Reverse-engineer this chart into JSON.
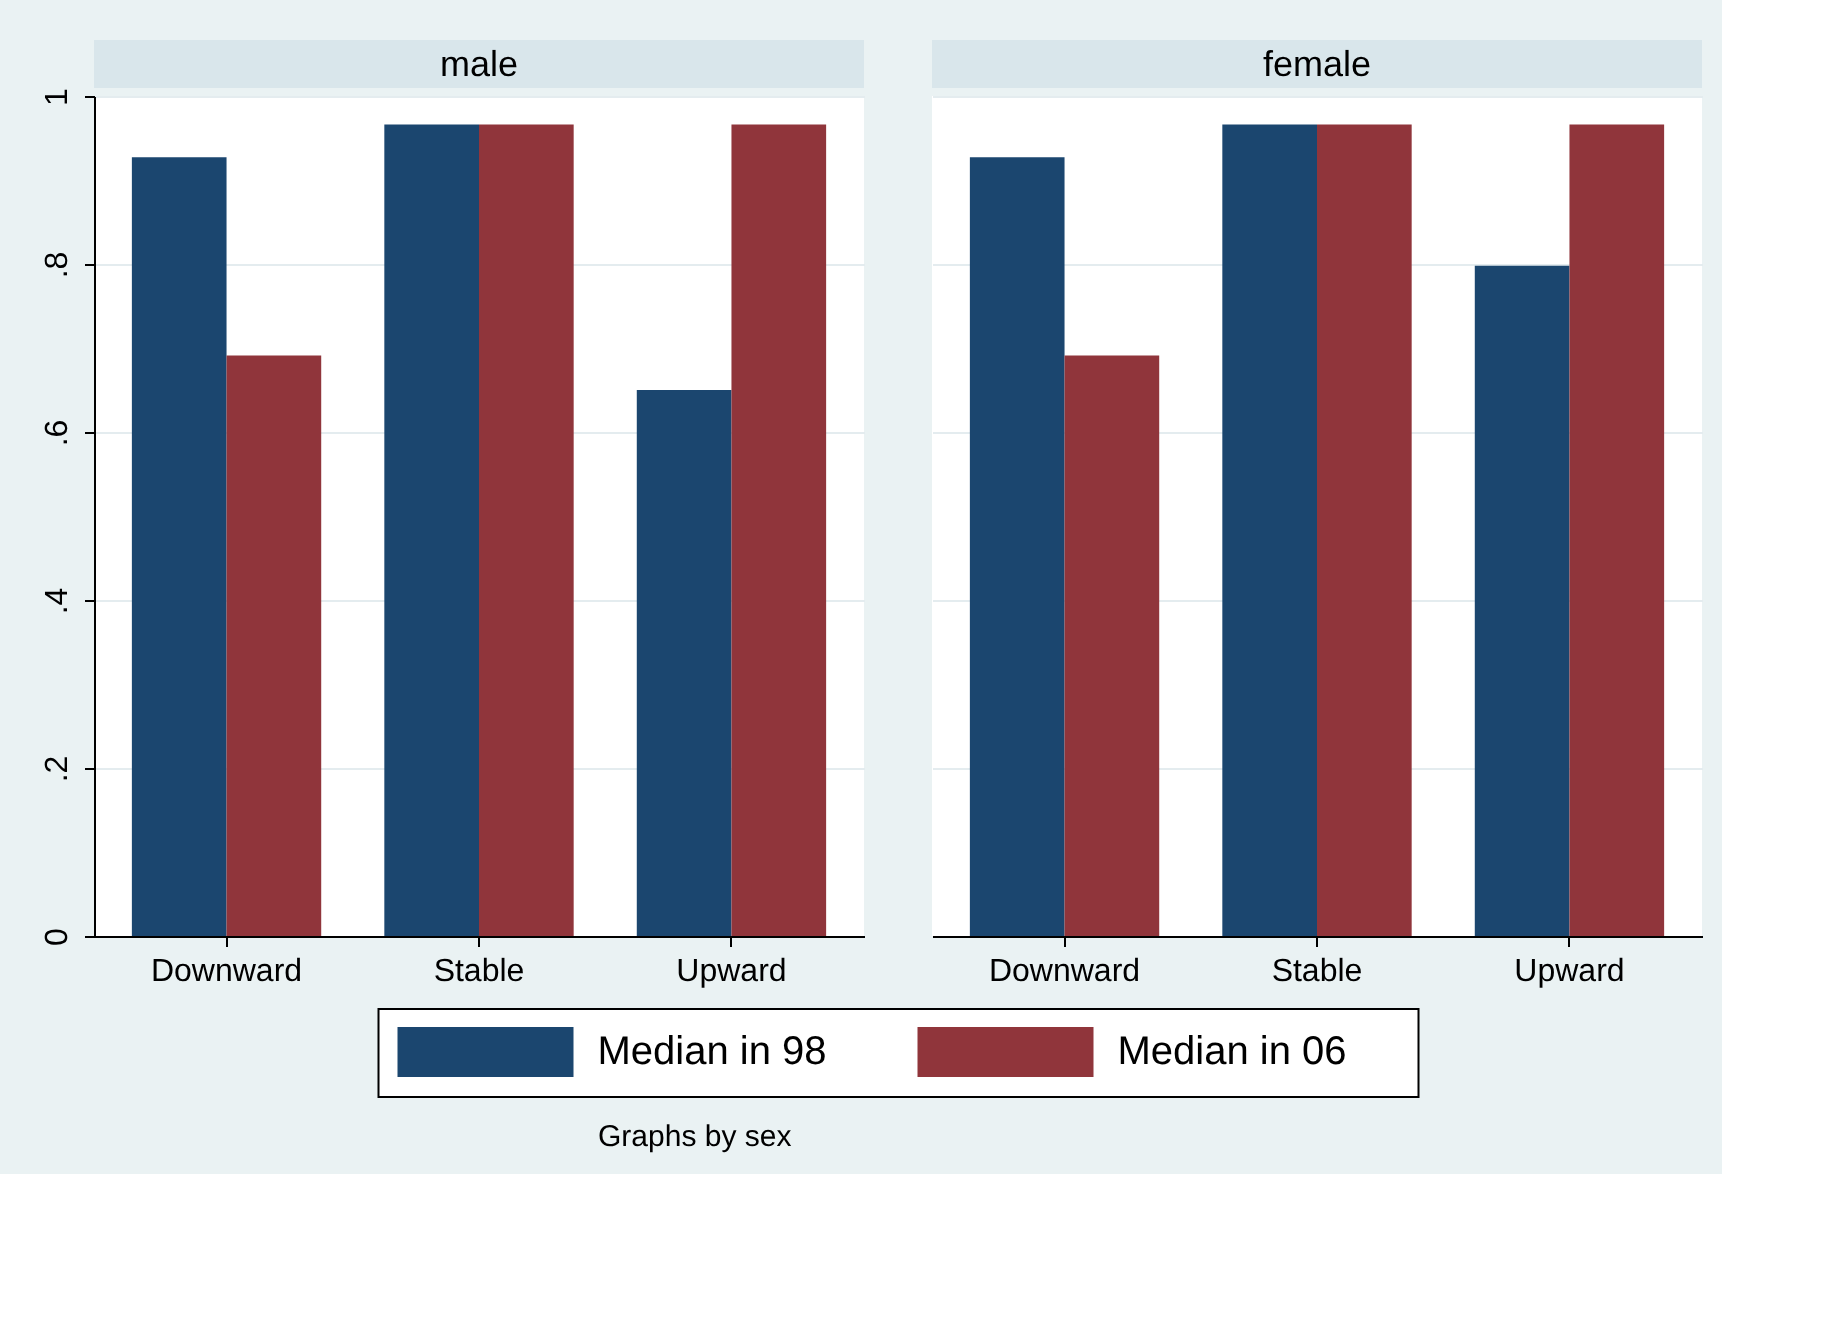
{
  "chart_data": [
    {
      "type": "bar",
      "title": "male",
      "categories": [
        "Downward",
        "Stable",
        "Upward"
      ],
      "series": [
        {
          "name": "Median in 98",
          "color": "#1b466f",
          "values": [
            0.927,
            0.966,
            0.65
          ]
        },
        {
          "name": "Median in 06",
          "color": "#90353b",
          "values": [
            0.691,
            0.966,
            0.966
          ]
        }
      ],
      "ylim": [
        0,
        1
      ],
      "yticks": [
        0,
        {
          "value": 0.2,
          "label": ".2"
        },
        {
          "value": 0.4,
          "label": ".4"
        },
        {
          "value": 0.6,
          "label": ".6"
        },
        {
          "value": 0.8,
          "label": ".8"
        },
        1
      ],
      "grid": "y",
      "legend": "bottom",
      "annotations": [
        "Graphs by sex"
      ]
    },
    {
      "type": "bar",
      "title": "female",
      "categories": [
        "Downward",
        "Stable",
        "Upward"
      ],
      "series": [
        {
          "color": "#1b466f",
          "values": [
            0.927,
            0.966,
            0.798
          ]
        },
        {
          "color": "#90353b",
          "values": [
            0.691,
            0.966,
            0.966
          ]
        }
      ],
      "ylim": [
        0,
        1
      ],
      "yticks": [
        {
          "value": 0,
          "label": null
        },
        {
          "value": 0.2,
          "label": null
        },
        {
          "value": 0.4,
          "label": null
        },
        {
          "value": 0.6,
          "label": null
        },
        {
          "value": 0.8,
          "label": null
        },
        {
          "value": 1,
          "label": null
        }
      ],
      "grid": "y",
      "tick_labels": "x"
    }
  ]
}
